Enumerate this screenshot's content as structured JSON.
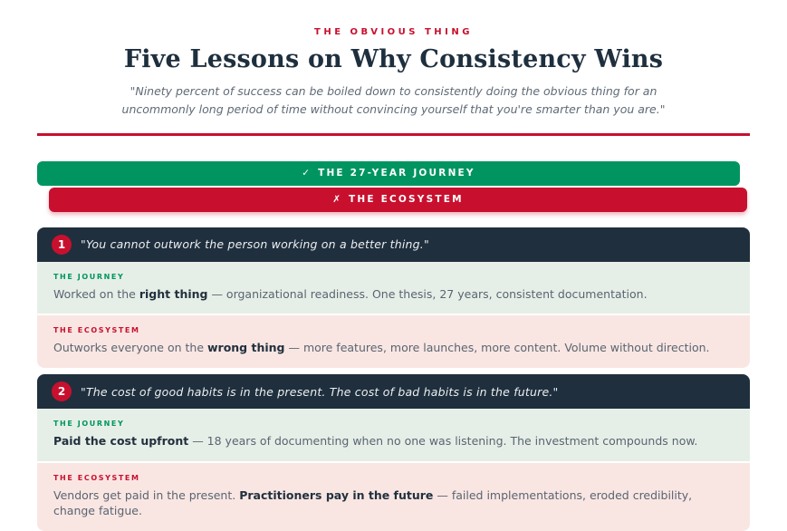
{
  "page": {
    "eyebrow": "THE OBVIOUS THING",
    "title": "Five Lessons on Why Consistency Wins",
    "subtitle": "\"Ninety percent of success can be boiled down to consistently doing the obvious thing for an uncommonly long period of time without convincing yourself that you're smarter than you are.\""
  },
  "legend": {
    "journey": {
      "icon": "✓",
      "label": "THE 27-YEAR JOURNEY"
    },
    "ecosystem": {
      "icon": "✗",
      "label": "THE ECOSYSTEM"
    }
  },
  "labels": {
    "journey": "THE JOURNEY",
    "ecosystem": "THE ECOSYSTEM"
  },
  "sections": [
    {
      "number": "1",
      "quote": "\"You cannot outwork the person working on a better thing.\"",
      "journey": {
        "pre": "Worked on the ",
        "bold": "right thing",
        "post": " — organizational readiness. One thesis, 27 years, consistent documentation."
      },
      "ecosystem": {
        "pre": "Outworks everyone on the ",
        "bold": "wrong thing",
        "post": " — more features, more launches, more content. Volume without direction."
      }
    },
    {
      "number": "2",
      "quote": "\"The cost of good habits is in the present. The cost of bad habits is in the future.\"",
      "journey": {
        "pre": "",
        "bold": "Paid the cost upfront",
        "post": " — 18 years of documenting when no one was listening. The investment compounds now."
      },
      "ecosystem": {
        "pre": "Vendors get paid in the present. ",
        "bold": "Practitioners pay in the future",
        "post": " — failed implementations, eroded credibility, change fatigue."
      }
    }
  ],
  "colors": {
    "crimson": "#c8102e",
    "green": "#009560",
    "navy": "#1f2f3e",
    "mint_bg": "#e6efe7",
    "blush_bg": "#f9e6e3"
  }
}
